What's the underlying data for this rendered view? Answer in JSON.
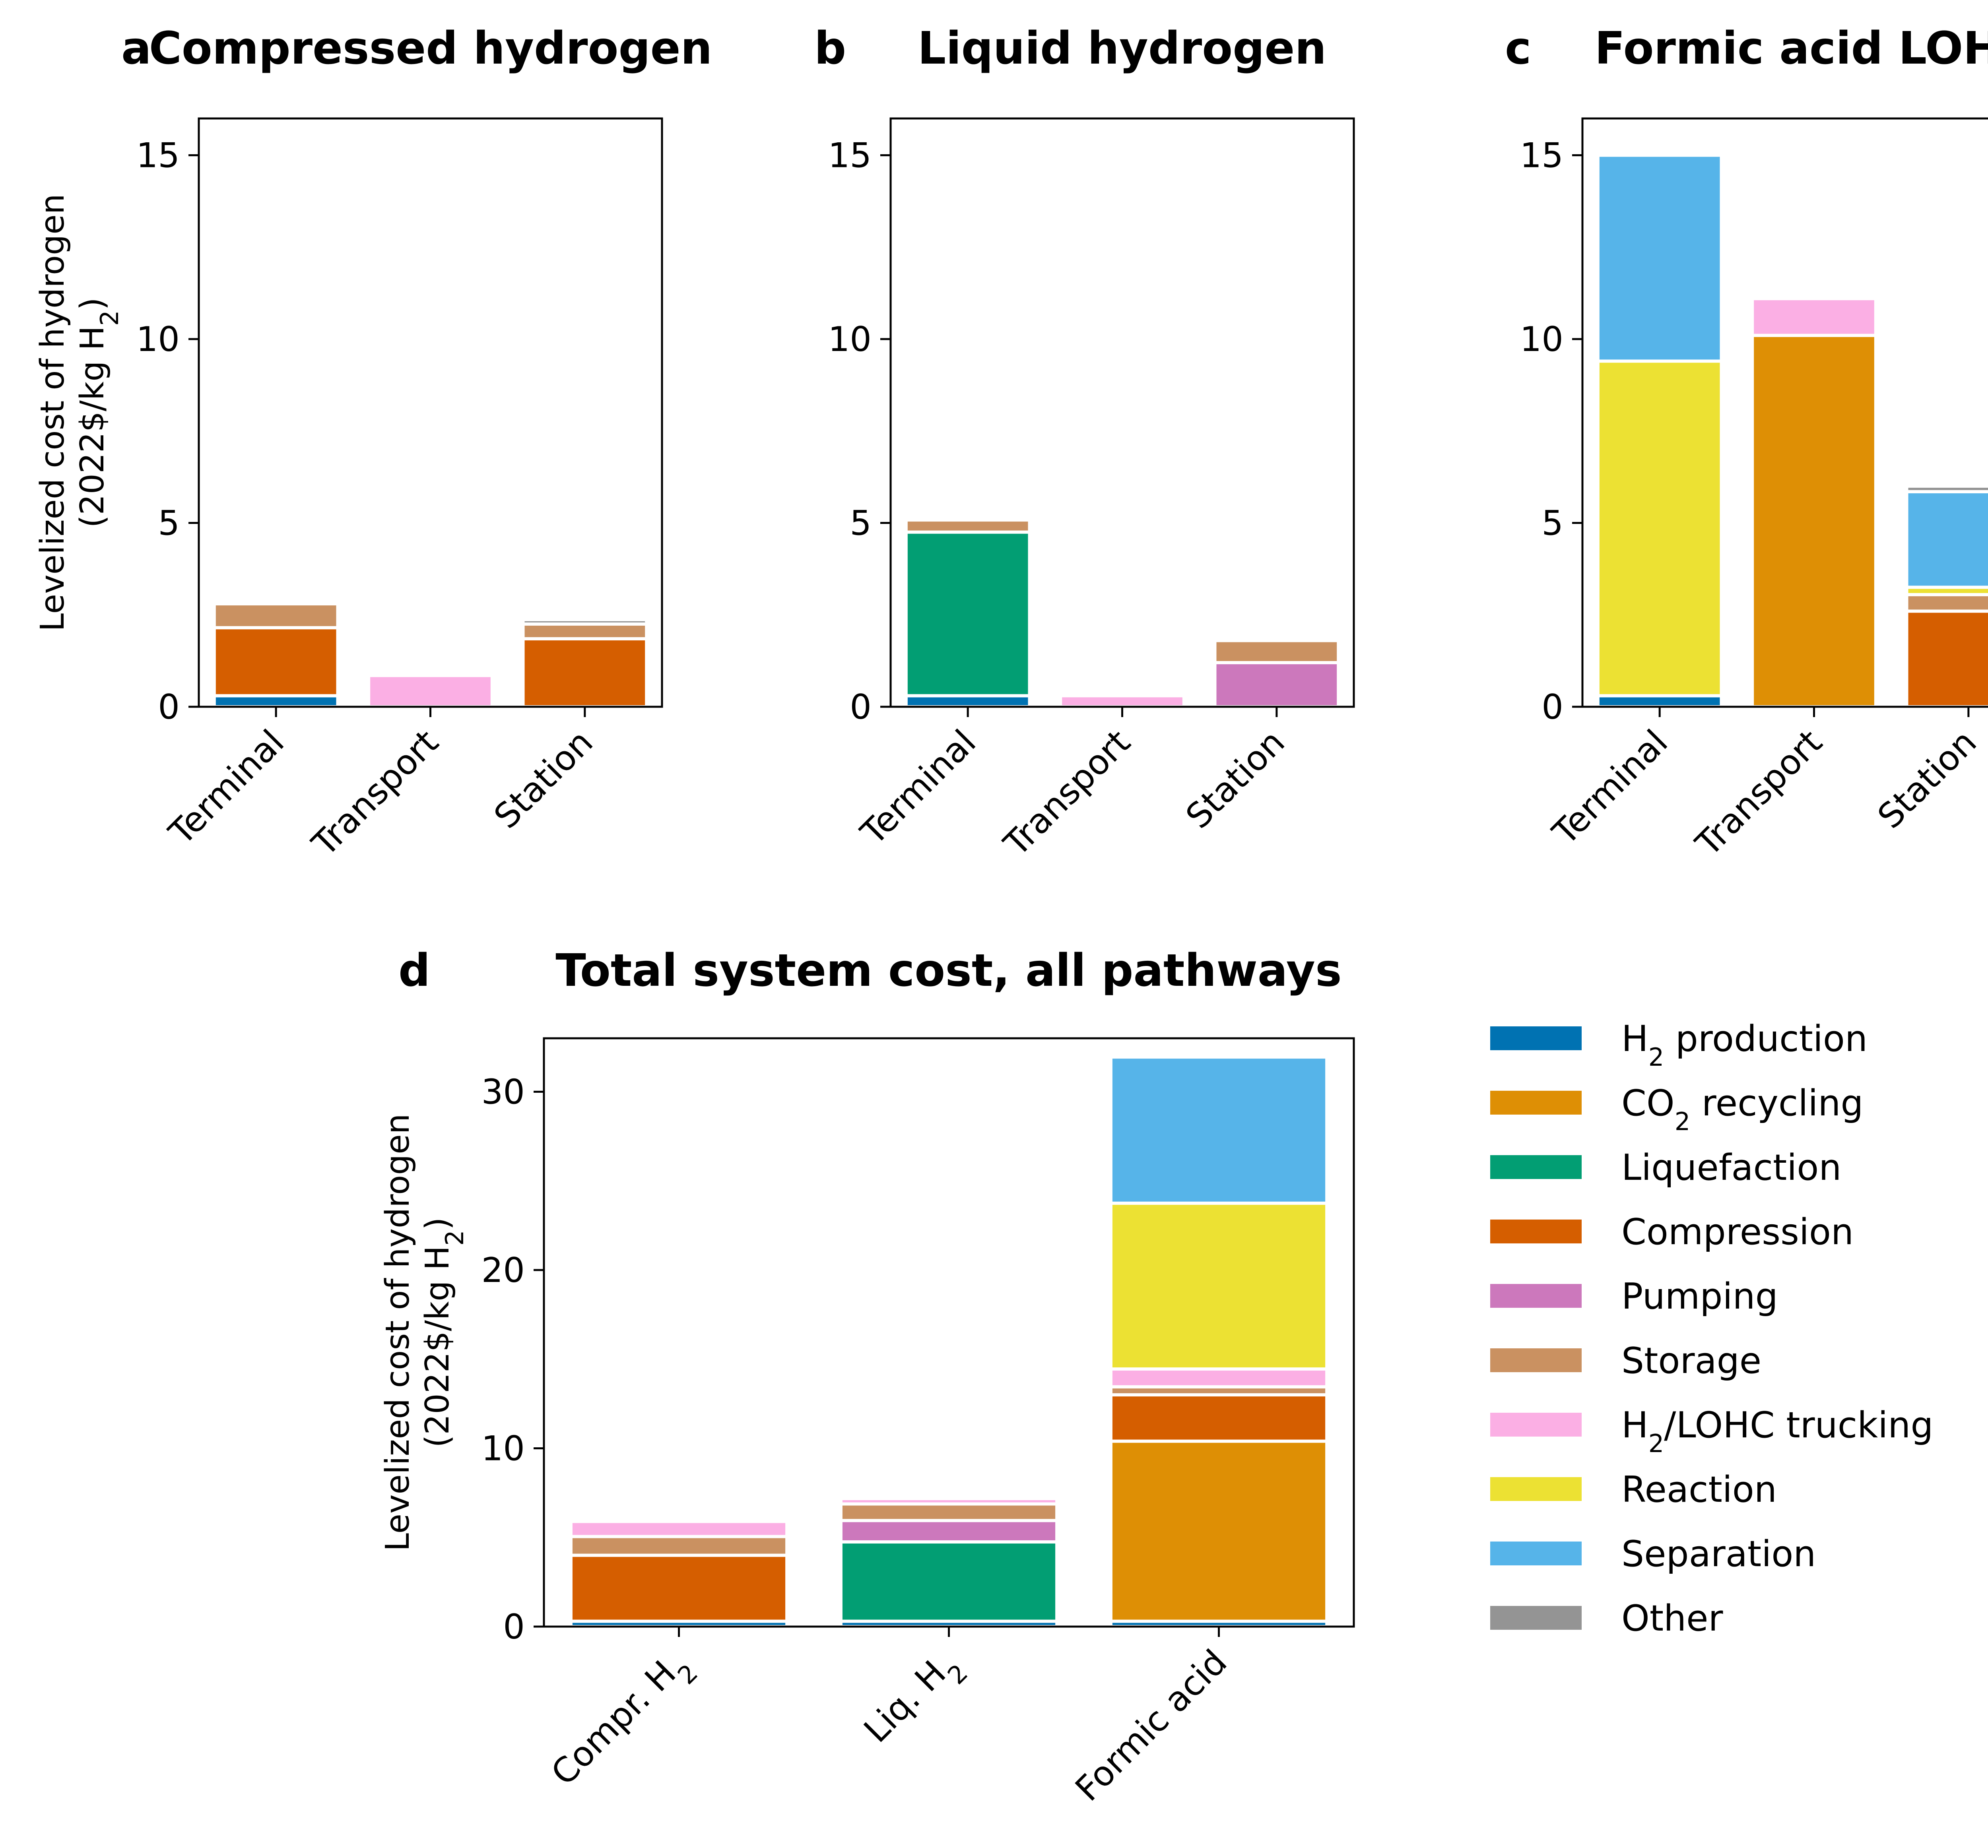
{
  "series_meta": [
    {
      "key": "h2_production",
      "name": "H₂ production",
      "color": "#0072b2"
    },
    {
      "key": "co2_recycling",
      "name": "CO₂ recycling",
      "color": "#de8f05"
    },
    {
      "key": "liquefaction",
      "name": "Liquefaction",
      "color": "#029e73"
    },
    {
      "key": "compression",
      "name": "Compression",
      "color": "#d55e00"
    },
    {
      "key": "pumping",
      "name": "Pumping",
      "color": "#cc78bc"
    },
    {
      "key": "storage",
      "name": "Storage",
      "color": "#ca9161"
    },
    {
      "key": "trucking",
      "name": "H₂/LOHC trucking",
      "color": "#fbafe4"
    },
    {
      "key": "reaction",
      "name": "Reaction",
      "color": "#ece133"
    },
    {
      "key": "separation",
      "name": "Separation",
      "color": "#56b4e9"
    },
    {
      "key": "other",
      "name": "Other",
      "color": "#949494"
    }
  ],
  "legend": {
    "placement": "right of panel d"
  },
  "chart_data": [
    {
      "panel": "a",
      "type": "bar",
      "stacked": true,
      "title": "Compressed hydrogen",
      "ylabel_line1": "Levelized cost of hydrogen",
      "ylabel_line2": "(2022$/kg H₂)",
      "ylim": [
        0,
        16
      ],
      "yticks": [
        "0",
        "5",
        "10",
        "15"
      ],
      "categories": [
        "Terminal",
        "Transport",
        "Station"
      ],
      "series": [
        {
          "name": "H₂ production",
          "values": [
            0.3,
            0,
            0
          ]
        },
        {
          "name": "Compression",
          "values": [
            1.85,
            0,
            1.85
          ]
        },
        {
          "name": "Storage",
          "values": [
            0.65,
            0,
            0.4
          ]
        },
        {
          "name": "H₂/LOHC trucking",
          "values": [
            0,
            0.85,
            0
          ]
        },
        {
          "name": "Other",
          "values": [
            0,
            0,
            0.12
          ]
        }
      ]
    },
    {
      "panel": "b",
      "type": "bar",
      "stacked": true,
      "title": "Liquid hydrogen",
      "ylim": [
        0,
        16
      ],
      "yticks": [
        "0",
        "5",
        "10",
        "15"
      ],
      "categories": [
        "Terminal",
        "Transport",
        "Station"
      ],
      "series": [
        {
          "name": "H₂ production",
          "values": [
            0.3,
            0,
            0
          ]
        },
        {
          "name": "Liquefaction",
          "values": [
            4.45,
            0,
            0
          ]
        },
        {
          "name": "Pumping",
          "values": [
            0,
            0,
            1.2
          ]
        },
        {
          "name": "Storage",
          "values": [
            0.33,
            0,
            0.6
          ]
        },
        {
          "name": "H₂/LOHC trucking",
          "values": [
            0,
            0.3,
            0
          ]
        }
      ]
    },
    {
      "panel": "c",
      "type": "bar",
      "stacked": true,
      "title": "Formic acid LOHC",
      "ylim": [
        0,
        16
      ],
      "yticks": [
        "0",
        "5",
        "10",
        "15"
      ],
      "categories": [
        "Terminal",
        "Transport",
        "Station"
      ],
      "series": [
        {
          "name": "H₂ production",
          "values": [
            0.3,
            0,
            0
          ]
        },
        {
          "name": "CO₂ recycling",
          "values": [
            0,
            10.1,
            0
          ]
        },
        {
          "name": "Compression",
          "values": [
            0,
            0,
            2.6
          ]
        },
        {
          "name": "Storage",
          "values": [
            0,
            0,
            0.45
          ]
        },
        {
          "name": "H₂/LOHC trucking",
          "values": [
            0,
            1.0,
            0
          ]
        },
        {
          "name": "Reaction",
          "values": [
            9.1,
            0,
            0.2
          ]
        },
        {
          "name": "Separation",
          "values": [
            5.6,
            0,
            2.6
          ]
        },
        {
          "name": "Other",
          "values": [
            0,
            0,
            0.15
          ]
        }
      ]
    },
    {
      "panel": "d",
      "type": "bar",
      "stacked": true,
      "title": "Total system cost, all pathways",
      "ylabel_line1": "Levelized cost of hydrogen",
      "ylabel_line2": "(2022$/kg H₂)",
      "ylim": [
        0,
        33
      ],
      "yticks": [
        "0",
        "10",
        "20",
        "30"
      ],
      "categories": [
        "Compr. H₂",
        "Liq. H₂",
        "Formic acid"
      ],
      "series": [
        {
          "name": "H₂ production",
          "values": [
            0.3,
            0.3,
            0.3
          ]
        },
        {
          "name": "CO₂ recycling",
          "values": [
            0,
            0,
            10.1
          ]
        },
        {
          "name": "Liquefaction",
          "values": [
            0,
            4.45,
            0
          ]
        },
        {
          "name": "Compression",
          "values": [
            3.7,
            0,
            2.6
          ]
        },
        {
          "name": "Pumping",
          "values": [
            0,
            1.2,
            0
          ]
        },
        {
          "name": "Storage",
          "values": [
            1.05,
            0.93,
            0.45
          ]
        },
        {
          "name": "H₂/LOHC trucking",
          "values": [
            0.85,
            0.3,
            1.0
          ]
        },
        {
          "name": "Reaction",
          "values": [
            0,
            0,
            9.3
          ]
        },
        {
          "name": "Separation",
          "values": [
            0,
            0,
            8.2
          ]
        },
        {
          "name": "Other",
          "values": [
            0.12,
            0,
            0.15
          ]
        }
      ]
    }
  ]
}
